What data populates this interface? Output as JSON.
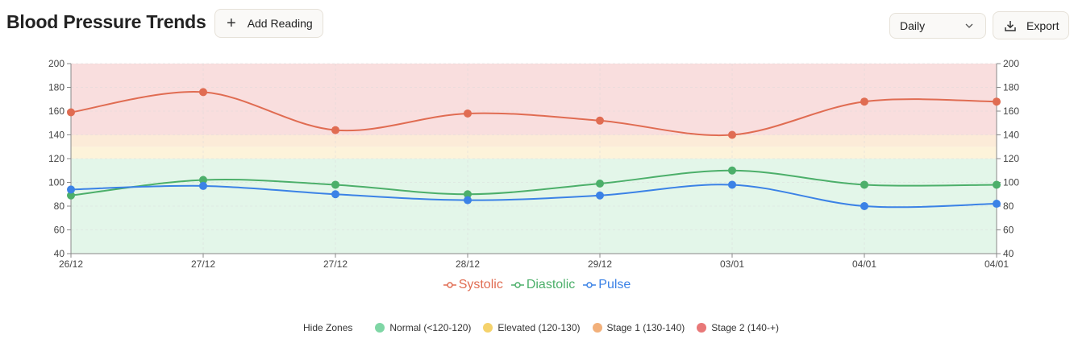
{
  "header": {
    "title": "Blood Pressure Trends",
    "add_label": "Add Reading",
    "period_selected": "Daily",
    "export_label": "Export"
  },
  "chart_data": {
    "type": "line",
    "categories": [
      "26/12",
      "27/12",
      "27/12",
      "28/12",
      "29/12",
      "03/01",
      "04/01",
      "04/01"
    ],
    "series": [
      {
        "name": "Systolic",
        "color": "#e06c52",
        "values": [
          159,
          176,
          144,
          158,
          152,
          140,
          168,
          168
        ]
      },
      {
        "name": "Diastolic",
        "color": "#4caf6a",
        "values": [
          89,
          102,
          98,
          90,
          99,
          110,
          98,
          98
        ]
      },
      {
        "name": "Pulse",
        "color": "#3b82e6",
        "values": [
          94,
          97,
          90,
          85,
          89,
          98,
          80,
          82
        ]
      }
    ],
    "ylim": [
      40,
      200
    ],
    "yticks": [
      40,
      60,
      80,
      100,
      120,
      140,
      160,
      180,
      200
    ],
    "zones": [
      {
        "from": 40,
        "to": 120,
        "color": "#e3f6e9"
      },
      {
        "from": 120,
        "to": 130,
        "color": "#fdf3da"
      },
      {
        "from": 130,
        "to": 140,
        "color": "#fcebd8"
      },
      {
        "from": 140,
        "to": 200,
        "color": "#f9dede"
      }
    ],
    "legend_placement": "bottom-center",
    "grid": true
  },
  "zones_legend": {
    "hide_label": "Hide Zones",
    "items": [
      {
        "label": "Normal (<120-120)",
        "color": "#7fd6a5"
      },
      {
        "label": "Elevated (120-130)",
        "color": "#f5d26b"
      },
      {
        "label": "Stage 1 (130-140)",
        "color": "#f2b07a"
      },
      {
        "label": "Stage 2 (140-+)",
        "color": "#e87878"
      }
    ]
  }
}
